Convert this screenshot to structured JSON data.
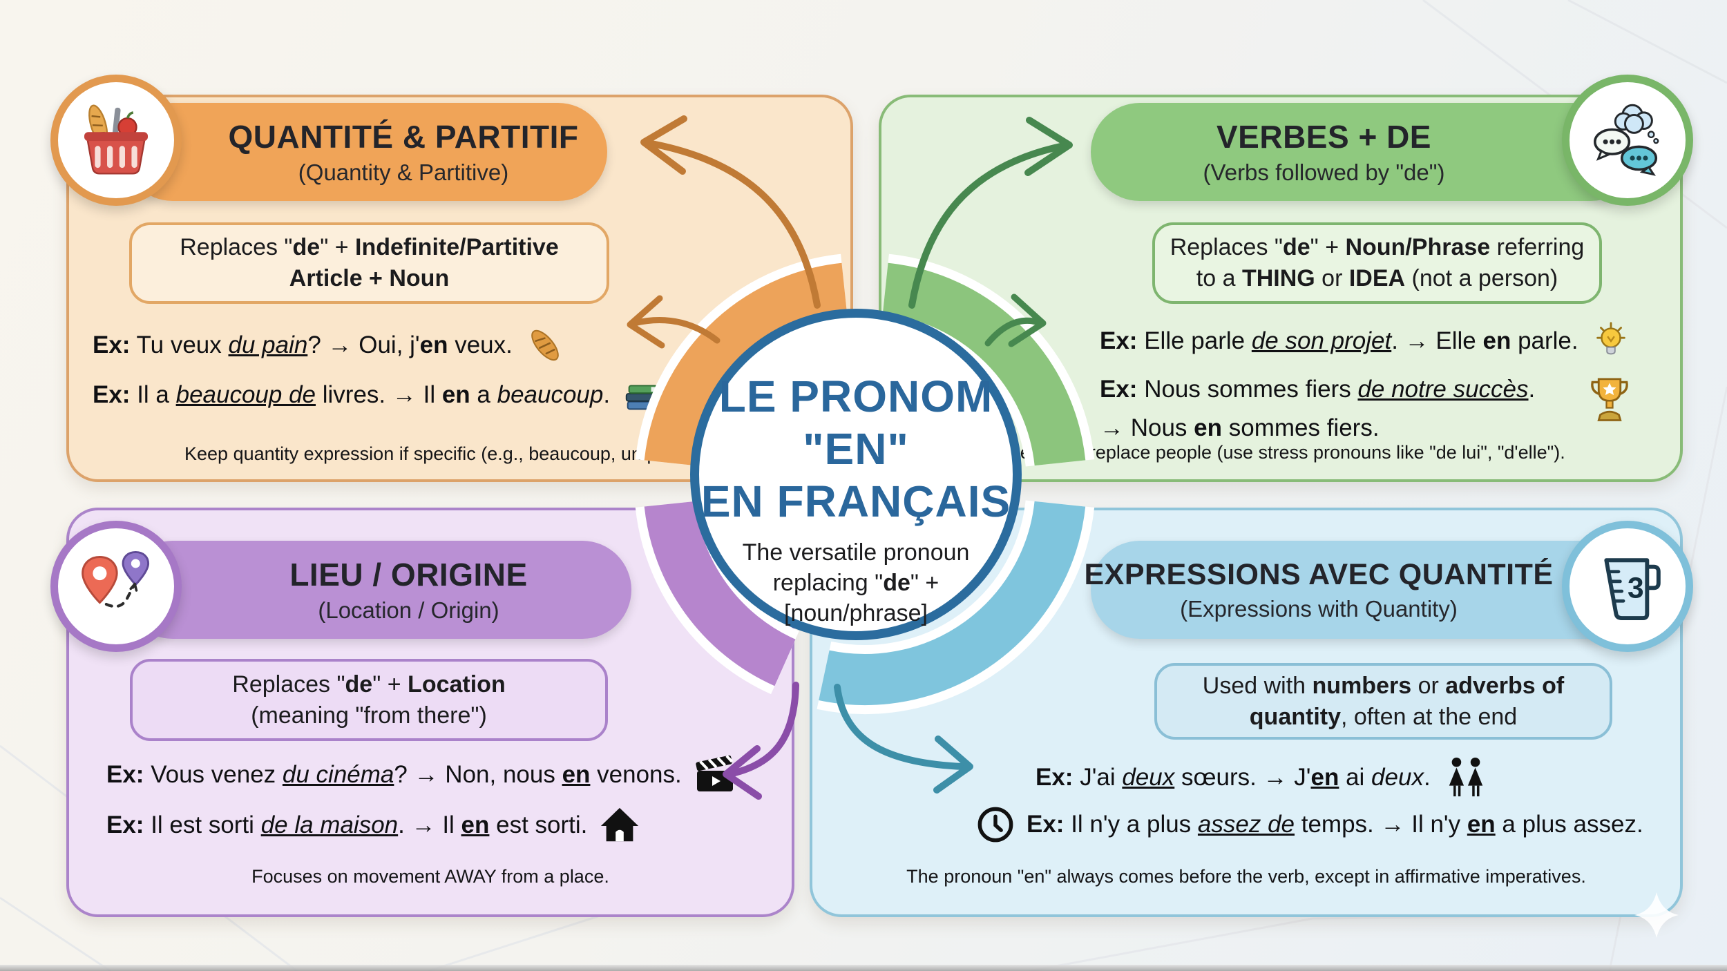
{
  "page_title": "Le pronom \"en\" en français — grammar mind map",
  "colors": {
    "tl-panel": "#fae6cb",
    "tl-border": "#dca26a",
    "tl-pill": "#f0a458",
    "tl-box": "#fcefdc",
    "tl-box-border": "#e2a765",
    "tl-ring": "#eda35a",
    "tl-arrow": "#c07a35",
    "tl-badge": "#e2994f",
    "tr-panel": "#e5f2de",
    "tr-border": "#88bb77",
    "tr-pill": "#8fc97f",
    "tr-box": "#e9f5e2",
    "tr-box-border": "#7eb56f",
    "tr-ring": "#8cc57d",
    "tr-arrow": "#47884f",
    "tr-badge": "#79b668",
    "bl-panel": "#f0e2f6",
    "bl-border": "#ab84ca",
    "bl-pill": "#ba90d4",
    "bl-box": "#eddcf5",
    "bl-box-border": "#aa82ca",
    "bl-ring": "#b685cd",
    "bl-arrow": "#8a4da8",
    "bl-badge": "#a678c6",
    "br-panel": "#def0f8",
    "br-border": "#90c5da",
    "br-pill": "#a7d5e9",
    "br-box": "#d4eaf4",
    "br-box-border": "#8abfd6",
    "br-ring": "#7fc5dd",
    "br-arrow": "#3d8fa8",
    "br-badge": "#7fc0da",
    "center-border": "#2b6c9e",
    "center-title": "#2a679c"
  },
  "center": {
    "title_lines": [
      "LE PRONOM",
      "\"EN\"",
      "EN FRANÇAIS"
    ],
    "subtitle_lines": [
      [
        {
          "t": "The versatile pronoun"
        }
      ],
      [
        {
          "t": "replacing \""
        },
        {
          "t": "de",
          "b": true
        },
        {
          "t": "\" +"
        }
      ],
      [
        {
          "t": "[noun/phrase]"
        }
      ]
    ]
  },
  "quadrants": {
    "quantite": {
      "title": "QUANTITÉ & PARTITIF",
      "subtitle": "(Quantity & Partitive)",
      "badge_icon": "shopping-basket-icon",
      "rule_lines": [
        [
          {
            "t": "Replaces \""
          },
          {
            "t": "de",
            "b": true
          },
          {
            "t": "\" + "
          },
          {
            "t": "Indefinite/Partitive",
            "b": true
          }
        ],
        [
          {
            "t": "Article + Noun",
            "b": true
          }
        ]
      ],
      "examples": [
        {
          "icon": "baguette-icon",
          "segs": [
            {
              "t": "Ex:",
              "b": true
            },
            {
              "t": " Tu veux "
            },
            {
              "t": "du pain",
              "i": true,
              "u": true
            },
            {
              "t": "? → Oui, j'"
            },
            {
              "t": "en",
              "b": true
            },
            {
              "t": " veux."
            }
          ]
        },
        {
          "icon": "books-icon",
          "segs": [
            {
              "t": "Ex:",
              "b": true
            },
            {
              "t": " Il a "
            },
            {
              "t": "beaucoup de",
              "i": true,
              "u": true
            },
            {
              "t": " livres. → Il "
            },
            {
              "t": "en",
              "b": true
            },
            {
              "t": " a "
            },
            {
              "t": "beaucoup",
              "i": true
            },
            {
              "t": "."
            }
          ]
        }
      ],
      "note": "Keep quantity expression if specific (e.g., beaucoup, un peu, trois)."
    },
    "verbes": {
      "title": "VERBES + DE",
      "subtitle": "(Verbs followed by \"de\")",
      "badge_icon": "speech-bubbles-icon",
      "rule_lines": [
        [
          {
            "t": "Replaces \""
          },
          {
            "t": "de",
            "b": true
          },
          {
            "t": "\" + "
          },
          {
            "t": "Noun/Phrase",
            "b": true
          },
          {
            "t": " referring"
          }
        ],
        [
          {
            "t": "to a "
          },
          {
            "t": "THING",
            "b": true
          },
          {
            "t": " or "
          },
          {
            "t": "IDEA",
            "b": true
          },
          {
            "t": " (not a person)"
          }
        ]
      ],
      "examples": [
        {
          "icon": "lightbulb-icon",
          "segs": [
            {
              "t": "Ex:",
              "b": true
            },
            {
              "t": " Elle parle "
            },
            {
              "t": "de son projet",
              "i": true,
              "u": true
            },
            {
              "t": ". → Elle "
            },
            {
              "t": "en",
              "b": true
            },
            {
              "t": " parle."
            }
          ]
        },
        {
          "icon": "trophy-icon",
          "segs": [
            {
              "t": "Ex:",
              "b": true
            },
            {
              "t": " Nous sommes fiers "
            },
            {
              "t": "de notre succès",
              "i": true,
              "u": true
            },
            {
              "t": "."
            }
          ]
        },
        {
          "segs": [
            {
              "t": "→ Nous "
            },
            {
              "t": "en",
              "b": true
            },
            {
              "t": " sommes fiers."
            }
          ]
        }
      ],
      "note": "Does NOT replace people (use stress pronouns like \"de lui\", \"d'elle\")."
    },
    "lieu": {
      "title": "LIEU / ORIGINE",
      "subtitle": "(Location / Origin)",
      "badge_icon": "map-pins-icon",
      "rule_lines": [
        [
          {
            "t": "Replaces \""
          },
          {
            "t": "de",
            "b": true
          },
          {
            "t": "\" + "
          },
          {
            "t": "Location",
            "b": true
          }
        ],
        [
          {
            "t": "(meaning \"from there\")"
          }
        ]
      ],
      "examples": [
        {
          "icon": "clapperboard-icon",
          "segs": [
            {
              "t": "Ex:",
              "b": true
            },
            {
              "t": " Vous venez "
            },
            {
              "t": "du cinéma",
              "i": true,
              "u": true
            },
            {
              "t": "? → Non, nous "
            },
            {
              "t": "en",
              "b": true,
              "u": true
            },
            {
              "t": " venons."
            }
          ]
        },
        {
          "icon": "house-icon",
          "segs": [
            {
              "t": "Ex:",
              "b": true
            },
            {
              "t": " Il est sorti "
            },
            {
              "t": "de la maison",
              "i": true,
              "u": true
            },
            {
              "t": ". → Il "
            },
            {
              "t": "en",
              "b": true,
              "u": true
            },
            {
              "t": " est sorti."
            }
          ]
        }
      ],
      "note": "Focuses on movement AWAY from a place."
    },
    "expressions": {
      "title": "EXPRESSIONS AVEC QUANTITÉ",
      "subtitle": "(Expressions with Quantity)",
      "badge_icon": "measuring-cup-icon",
      "rule_lines": [
        [
          {
            "t": "Used with "
          },
          {
            "t": "numbers",
            "b": true
          },
          {
            "t": " or "
          },
          {
            "t": "adverbs of",
            "b": true
          }
        ],
        [
          {
            "t": "quantity",
            "b": true
          },
          {
            "t": ", often at the end"
          }
        ]
      ],
      "examples": [
        {
          "icon": "two-women-icon",
          "segs": [
            {
              "t": "Ex:",
              "b": true
            },
            {
              "t": " J'ai "
            },
            {
              "t": "deux",
              "i": true,
              "u": true
            },
            {
              "t": " sœurs. → J'"
            },
            {
              "t": "en",
              "b": true,
              "u": true
            },
            {
              "t": " ai "
            },
            {
              "t": "deux",
              "i": true
            },
            {
              "t": "."
            }
          ]
        },
        {
          "icon": "clock-icon",
          "icon_first": true,
          "segs": [
            {
              "t": "Ex:",
              "b": true
            },
            {
              "t": " Il n'y a plus "
            },
            {
              "t": "assez de",
              "i": true,
              "u": true
            },
            {
              "t": " temps. → Il n'y "
            },
            {
              "t": "en",
              "b": true,
              "u": true
            },
            {
              "t": " a plus assez."
            }
          ]
        }
      ],
      "note": "The pronoun \"en\" always comes before the verb, except in affirmative imperatives."
    }
  }
}
